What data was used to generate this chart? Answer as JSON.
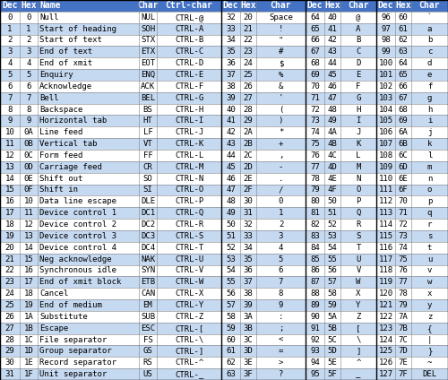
{
  "header_bg": "#4472C4",
  "header_text_color": "#FFFFFF",
  "col1_headers": [
    "Dec",
    "Hex",
    "Name",
    "Char",
    "Ctrl-char"
  ],
  "col2_headers": [
    "Dec",
    "Hex",
    "Char"
  ],
  "col3_headers": [
    "Dec",
    "Hex",
    "Char"
  ],
  "col4_headers": [
    "Dec",
    "Hex",
    "Char"
  ],
  "header_font_size": 7.0,
  "cell_font_size": 6.5,
  "data_section1": [
    [
      0,
      "0",
      "Null",
      "NUL",
      "CTRL-@"
    ],
    [
      1,
      "1",
      "Start of heading",
      "SOH",
      "CTRL-A"
    ],
    [
      2,
      "2",
      "Start of text",
      "STX",
      "CTRL-B"
    ],
    [
      3,
      "3",
      "End of text",
      "ETX",
      "CTRL-C"
    ],
    [
      4,
      "4",
      "End of xmit",
      "EOT",
      "CTRL-D"
    ],
    [
      5,
      "5",
      "Enquiry",
      "ENQ",
      "CTRL-E"
    ],
    [
      6,
      "6",
      "Acknowledge",
      "ACK",
      "CTRL-F"
    ],
    [
      7,
      "7",
      "Bell",
      "BEL",
      "CTRL-G"
    ],
    [
      8,
      "8",
      "Backspace",
      "BS",
      "CTRL-H"
    ],
    [
      9,
      "9",
      "Horizontal tab",
      "HT",
      "CTRL-I"
    ],
    [
      10,
      "0A",
      "Line feed",
      "LF",
      "CTRL-J"
    ],
    [
      11,
      "0B",
      "Vertical tab",
      "VT",
      "CTRL-K"
    ],
    [
      12,
      "0C",
      "Form feed",
      "FF",
      "CTRL-L"
    ],
    [
      13,
      "0D",
      "Carriage feed",
      "CR",
      "CTRL-M"
    ],
    [
      14,
      "0E",
      "Shift out",
      "SO",
      "CTRL-N"
    ],
    [
      15,
      "0F",
      "Shift in",
      "SI",
      "CTRL-O"
    ],
    [
      16,
      "10",
      "Data line escape",
      "DLE",
      "CTRL-P"
    ],
    [
      17,
      "11",
      "Device control 1",
      "DC1",
      "CTRL-Q"
    ],
    [
      18,
      "12",
      "Device control 2",
      "DC2",
      "CTRL-R"
    ],
    [
      19,
      "13",
      "Device control 3",
      "DC3",
      "CTRL-S"
    ],
    [
      20,
      "14",
      "Device control 4",
      "DC4",
      "CTRL-T"
    ],
    [
      21,
      "15",
      "Neg acknowledge",
      "NAK",
      "CTRL-U"
    ],
    [
      22,
      "16",
      "Synchronous idle",
      "SYN",
      "CTRL-V"
    ],
    [
      23,
      "17",
      "End of xmit block",
      "ETB",
      "CTRL-W"
    ],
    [
      24,
      "18",
      "Cancel",
      "CAN",
      "CTRL-X"
    ],
    [
      25,
      "19",
      "End of medium",
      "EM",
      "CTRL-Y"
    ],
    [
      26,
      "1A",
      "Substitute",
      "SUB",
      "CTRL-Z"
    ],
    [
      27,
      "1B",
      "Escape",
      "ESC",
      "CTRL-["
    ],
    [
      28,
      "1C",
      "File separator",
      "FS",
      "CTRL-\\"
    ],
    [
      29,
      "1D",
      "Group separator",
      "GS",
      "CTRL-]"
    ],
    [
      30,
      "1E",
      "Record separator",
      "RS",
      "CTRL-^"
    ],
    [
      31,
      "1F",
      "Unit separator",
      "US",
      "CTRL-_"
    ]
  ],
  "data_section2": [
    [
      32,
      "20",
      "Space"
    ],
    [
      33,
      "21",
      "!"
    ],
    [
      34,
      "22",
      "\""
    ],
    [
      35,
      "23",
      "#"
    ],
    [
      36,
      "24",
      "$"
    ],
    [
      37,
      "25",
      "%"
    ],
    [
      38,
      "26",
      "&"
    ],
    [
      39,
      "27",
      "'"
    ],
    [
      40,
      "28",
      "("
    ],
    [
      41,
      "29",
      ")"
    ],
    [
      42,
      "2A",
      "*"
    ],
    [
      43,
      "2B",
      "+"
    ],
    [
      44,
      "2C",
      ","
    ],
    [
      45,
      "2D",
      "-"
    ],
    [
      46,
      "2E",
      "."
    ],
    [
      47,
      "2F",
      "/"
    ],
    [
      48,
      "30",
      "0"
    ],
    [
      49,
      "31",
      "1"
    ],
    [
      50,
      "32",
      "2"
    ],
    [
      51,
      "33",
      "3"
    ],
    [
      52,
      "34",
      "4"
    ],
    [
      53,
      "35",
      "5"
    ],
    [
      54,
      "36",
      "6"
    ],
    [
      55,
      "37",
      "7"
    ],
    [
      56,
      "38",
      "8"
    ],
    [
      57,
      "39",
      "9"
    ],
    [
      58,
      "3A",
      ":"
    ],
    [
      59,
      "3B",
      ";"
    ],
    [
      60,
      "3C",
      "<"
    ],
    [
      61,
      "3D",
      "="
    ],
    [
      62,
      "3E",
      ">"
    ],
    [
      63,
      "3F",
      "?"
    ]
  ],
  "data_section3": [
    [
      64,
      "40",
      "@"
    ],
    [
      65,
      "41",
      "A"
    ],
    [
      66,
      "42",
      "B"
    ],
    [
      67,
      "43",
      "C"
    ],
    [
      68,
      "44",
      "D"
    ],
    [
      69,
      "45",
      "E"
    ],
    [
      70,
      "46",
      "F"
    ],
    [
      71,
      "47",
      "G"
    ],
    [
      72,
      "48",
      "H"
    ],
    [
      73,
      "49",
      "I"
    ],
    [
      74,
      "4A",
      "J"
    ],
    [
      75,
      "4B",
      "K"
    ],
    [
      76,
      "4C",
      "L"
    ],
    [
      77,
      "4D",
      "M"
    ],
    [
      78,
      "4E",
      "N"
    ],
    [
      79,
      "4F",
      "O"
    ],
    [
      80,
      "50",
      "P"
    ],
    [
      81,
      "51",
      "Q"
    ],
    [
      82,
      "52",
      "R"
    ],
    [
      83,
      "53",
      "S"
    ],
    [
      84,
      "54",
      "T"
    ],
    [
      85,
      "55",
      "U"
    ],
    [
      86,
      "56",
      "V"
    ],
    [
      87,
      "57",
      "W"
    ],
    [
      88,
      "58",
      "X"
    ],
    [
      89,
      "59",
      "Y"
    ],
    [
      90,
      "5A",
      "Z"
    ],
    [
      91,
      "5B",
      "["
    ],
    [
      92,
      "5C",
      "\\"
    ],
    [
      93,
      "5D",
      "]"
    ],
    [
      94,
      "5E",
      "^"
    ],
    [
      95,
      "5F",
      "_"
    ]
  ],
  "data_section4": [
    [
      96,
      "60",
      "`"
    ],
    [
      97,
      "61",
      "a"
    ],
    [
      98,
      "62",
      "b"
    ],
    [
      99,
      "63",
      "c"
    ],
    [
      100,
      "64",
      "d"
    ],
    [
      101,
      "65",
      "e"
    ],
    [
      102,
      "66",
      "f"
    ],
    [
      103,
      "67",
      "g"
    ],
    [
      104,
      "68",
      "h"
    ],
    [
      105,
      "69",
      "i"
    ],
    [
      106,
      "6A",
      "j"
    ],
    [
      107,
      "6B",
      "k"
    ],
    [
      108,
      "6C",
      "l"
    ],
    [
      109,
      "6D",
      "m"
    ],
    [
      110,
      "6E",
      "n"
    ],
    [
      111,
      "6F",
      "o"
    ],
    [
      112,
      "70",
      "p"
    ],
    [
      113,
      "71",
      "q"
    ],
    [
      114,
      "72",
      "r"
    ],
    [
      115,
      "73",
      "s"
    ],
    [
      116,
      "74",
      "t"
    ],
    [
      117,
      "75",
      "u"
    ],
    [
      118,
      "76",
      "v"
    ],
    [
      119,
      "77",
      "w"
    ],
    [
      120,
      "78",
      "x"
    ],
    [
      121,
      "79",
      "y"
    ],
    [
      122,
      "7A",
      "z"
    ],
    [
      123,
      "7B",
      "{"
    ],
    [
      124,
      "7C",
      "|"
    ],
    [
      125,
      "7D",
      "}"
    ],
    [
      126,
      "7E",
      "~"
    ],
    [
      127,
      "7F",
      "DEL"
    ]
  ],
  "s1_cols": [
    0,
    22,
    42,
    155,
    175,
    247
  ],
  "s2_cols": [
    247,
    268,
    286,
    341
  ],
  "s3_cols": [
    341,
    362,
    380,
    420
  ],
  "s4_cols": [
    420,
    441,
    459,
    500
  ]
}
